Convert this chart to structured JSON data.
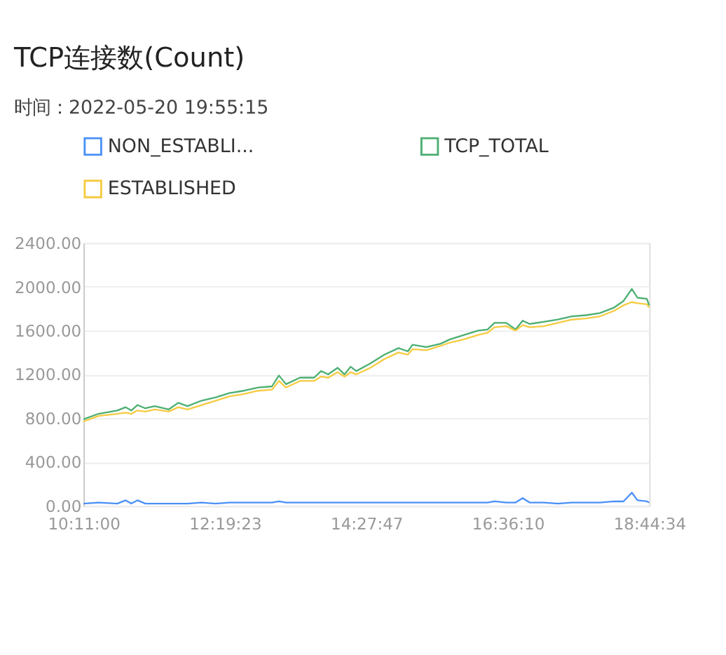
{
  "chart_data": {
    "type": "line",
    "title": "TCP连接数(Count)",
    "subtitle": "时间：2022-05-20 19:55:15",
    "x": [
      10.1833,
      10.41,
      10.694,
      10.821,
      10.906,
      10.999,
      11.119,
      11.261,
      11.474,
      11.616,
      11.757,
      11.97,
      12.183,
      12.396,
      12.608,
      12.821,
      13.034,
      13.14,
      13.247,
      13.459,
      13.672,
      13.778,
      13.885,
      14.027,
      14.133,
      14.225,
      14.31,
      14.523,
      14.736,
      14.949,
      15.09,
      15.161,
      15.374,
      15.587,
      15.729,
      15.941,
      16.154,
      16.296,
      16.402,
      16.58,
      16.721,
      16.828,
      16.934,
      17.147,
      17.36,
      17.572,
      17.785,
      17.998,
      18.211,
      18.353,
      18.48,
      18.565,
      18.707,
      18.7428
    ],
    "series": [
      {
        "name": "NON_ESTABLI...",
        "color": "#4a90f7",
        "values": [
          20,
          30,
          20,
          50,
          20,
          50,
          20,
          20,
          20,
          20,
          20,
          30,
          20,
          30,
          30,
          30,
          30,
          40,
          30,
          30,
          30,
          30,
          30,
          30,
          30,
          30,
          30,
          30,
          30,
          30,
          30,
          30,
          30,
          30,
          30,
          30,
          30,
          30,
          40,
          30,
          30,
          70,
          30,
          30,
          20,
          30,
          30,
          30,
          40,
          40,
          120,
          50,
          40,
          30
        ]
      },
      {
        "name": "TCP_TOTAL",
        "color": "#4caf72",
        "values": [
          790,
          840,
          870,
          900,
          870,
          920,
          890,
          910,
          880,
          940,
          910,
          960,
          990,
          1030,
          1050,
          1080,
          1090,
          1190,
          1110,
          1170,
          1170,
          1230,
          1200,
          1260,
          1200,
          1270,
          1230,
          1300,
          1380,
          1440,
          1410,
          1470,
          1450,
          1480,
          1520,
          1560,
          1600,
          1610,
          1670,
          1670,
          1610,
          1690,
          1660,
          1680,
          1700,
          1730,
          1740,
          1760,
          1810,
          1870,
          1980,
          1900,
          1890,
          1830
        ]
      },
      {
        "name": "ESTABLISHED",
        "color": "#f5cb42",
        "values": [
          770,
          820,
          840,
          850,
          840,
          870,
          860,
          880,
          860,
          900,
          880,
          920,
          960,
          1000,
          1020,
          1050,
          1060,
          1140,
          1080,
          1140,
          1140,
          1180,
          1170,
          1220,
          1180,
          1220,
          1200,
          1260,
          1340,
          1400,
          1380,
          1430,
          1420,
          1460,
          1490,
          1520,
          1560,
          1580,
          1630,
          1640,
          1600,
          1650,
          1630,
          1640,
          1670,
          1700,
          1710,
          1730,
          1780,
          1830,
          1860,
          1850,
          1840,
          1810
        ]
      }
    ],
    "xlim": [
      10.1833,
      18.7428
    ],
    "xticks": [
      {
        "value": 10.1833,
        "label": "10:11:00"
      },
      {
        "value": 12.3231,
        "label": "12:19:23"
      },
      {
        "value": 14.4631,
        "label": "14:27:47"
      },
      {
        "value": 16.6028,
        "label": "16:36:10"
      },
      {
        "value": 18.7428,
        "label": "18:44:34"
      }
    ],
    "ylim": [
      0,
      2400
    ],
    "yticks": [
      {
        "value": 0,
        "label": "0.00"
      },
      {
        "value": 400,
        "label": "400.00"
      },
      {
        "value": 800,
        "label": "800.00"
      },
      {
        "value": 1200,
        "label": "1200.00"
      },
      {
        "value": 1600,
        "label": "1600.00"
      },
      {
        "value": 2000,
        "label": "2000.00"
      },
      {
        "value": 2400,
        "label": "2400.00"
      }
    ],
    "grid": "y",
    "legend": "top",
    "marker": "none",
    "line_style": "solid"
  }
}
